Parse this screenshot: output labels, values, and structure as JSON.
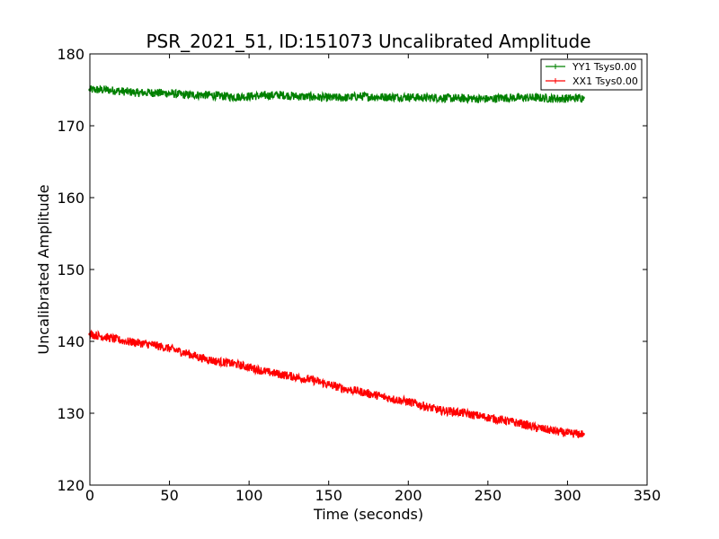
{
  "chart_data": {
    "type": "line",
    "title": "PSR_2021_51, ID:151073 Uncalibrated Amplitude",
    "xlabel": "Time (seconds)",
    "ylabel": "Uncalibrated Amplitude",
    "xlim": [
      0,
      350
    ],
    "ylim": [
      120,
      180
    ],
    "xticks": [
      0,
      50,
      100,
      150,
      200,
      250,
      300,
      350
    ],
    "yticks": [
      120,
      130,
      140,
      150,
      160,
      170,
      180
    ],
    "grid": false,
    "legend_position": "top-right",
    "series": [
      {
        "name": "YY1 Tsys0.00",
        "color": "#008000",
        "noise": 0.6,
        "x": [
          0,
          10,
          20,
          30,
          40,
          50,
          60,
          70,
          80,
          90,
          100,
          110,
          120,
          130,
          140,
          150,
          160,
          170,
          180,
          190,
          200,
          210,
          220,
          230,
          240,
          250,
          260,
          270,
          280,
          290,
          300,
          310
        ],
        "y": [
          175.0,
          175.0,
          174.8,
          174.6,
          174.6,
          174.5,
          174.3,
          174.3,
          174.2,
          174.0,
          174.1,
          174.2,
          174.3,
          174.1,
          174.0,
          173.9,
          173.9,
          174.1,
          174.0,
          174.0,
          174.0,
          173.9,
          173.9,
          173.8,
          173.8,
          173.7,
          173.9,
          173.9,
          173.9,
          173.8,
          173.8,
          173.9
        ]
      },
      {
        "name": "XX1 Tsys0.00",
        "color": "#ff0000",
        "noise": 0.6,
        "x": [
          0,
          10,
          20,
          30,
          40,
          50,
          60,
          70,
          80,
          90,
          100,
          110,
          120,
          130,
          140,
          150,
          160,
          170,
          180,
          190,
          200,
          210,
          220,
          230,
          240,
          250,
          260,
          270,
          280,
          290,
          300,
          310
        ],
        "y": [
          141.0,
          140.6,
          140.1,
          139.8,
          139.5,
          139.0,
          138.4,
          137.7,
          137.2,
          136.9,
          136.4,
          135.8,
          135.4,
          135.0,
          134.6,
          134.0,
          133.4,
          133.0,
          132.5,
          132.0,
          131.6,
          131.0,
          130.4,
          130.2,
          129.8,
          129.4,
          129.0,
          128.6,
          128.0,
          127.6,
          127.2,
          127.1
        ]
      }
    ]
  }
}
